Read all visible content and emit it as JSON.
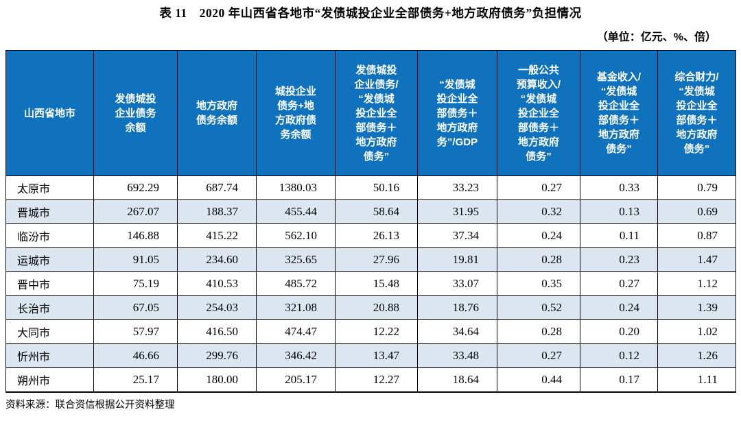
{
  "title": "表 11　2020 年山西省各地市“发债城投企业全部债务+地方政府债务”负担情况",
  "unit_note": "（单位：亿元、%、倍）",
  "source_note": "资料来源：联合资信根据公开资料整理",
  "colors": {
    "header_bg": "#1072BD",
    "header_text": "#FFFFFF",
    "row_alt_bg": "#DCE6F1",
    "border": "#000000"
  },
  "table": {
    "columns": [
      "山西省地市",
      "发债城投\n企业债务\n余额",
      "地方政府\n债务余额",
      "城投企业\n债务+地\n方政府债\n务余额",
      "发债城投\n企业债务/\n“发债城\n投企业全\n部债务＋\n地方政府\n债务”",
      "“发债城\n投企业全\n部债务＋\n地方政府\n务”/GDP",
      "一般公共\n预算收入/\n“发债城\n投企业全\n部债务＋\n地方政府\n债务”",
      "基金收入/\n“发债城\n投企业全\n部债务＋\n地方政府\n债务”",
      "综合财力/\n“发债城\n投企业全\n部债务＋\n地方政府\n债务”"
    ],
    "rows": [
      {
        "city": "太原市",
        "values": [
          "692.29",
          "687.74",
          "1380.03",
          "50.16",
          "33.23",
          "0.27",
          "0.33",
          "0.79"
        ]
      },
      {
        "city": "晋城市",
        "values": [
          "267.07",
          "188.37",
          "455.44",
          "58.64",
          "31.95",
          "0.32",
          "0.13",
          "0.69"
        ]
      },
      {
        "city": "临汾市",
        "values": [
          "146.88",
          "415.22",
          "562.10",
          "26.13",
          "37.34",
          "0.24",
          "0.11",
          "0.87"
        ]
      },
      {
        "city": "运城市",
        "values": [
          "91.05",
          "234.60",
          "325.65",
          "27.96",
          "19.81",
          "0.28",
          "0.23",
          "1.47"
        ]
      },
      {
        "city": "晋中市",
        "values": [
          "75.19",
          "410.53",
          "485.72",
          "15.48",
          "33.07",
          "0.35",
          "0.27",
          "1.12"
        ]
      },
      {
        "city": "长治市",
        "values": [
          "67.05",
          "254.03",
          "321.08",
          "20.88",
          "18.76",
          "0.52",
          "0.24",
          "1.39"
        ]
      },
      {
        "city": "大同市",
        "values": [
          "57.97",
          "416.50",
          "474.47",
          "12.22",
          "34.64",
          "0.28",
          "0.20",
          "1.02"
        ]
      },
      {
        "city": "忻州市",
        "values": [
          "46.66",
          "299.76",
          "346.42",
          "13.47",
          "33.48",
          "0.27",
          "0.12",
          "1.26"
        ]
      },
      {
        "city": "朔州市",
        "values": [
          "25.17",
          "180.00",
          "205.17",
          "12.27",
          "18.64",
          "0.44",
          "0.17",
          "1.11"
        ]
      }
    ]
  }
}
